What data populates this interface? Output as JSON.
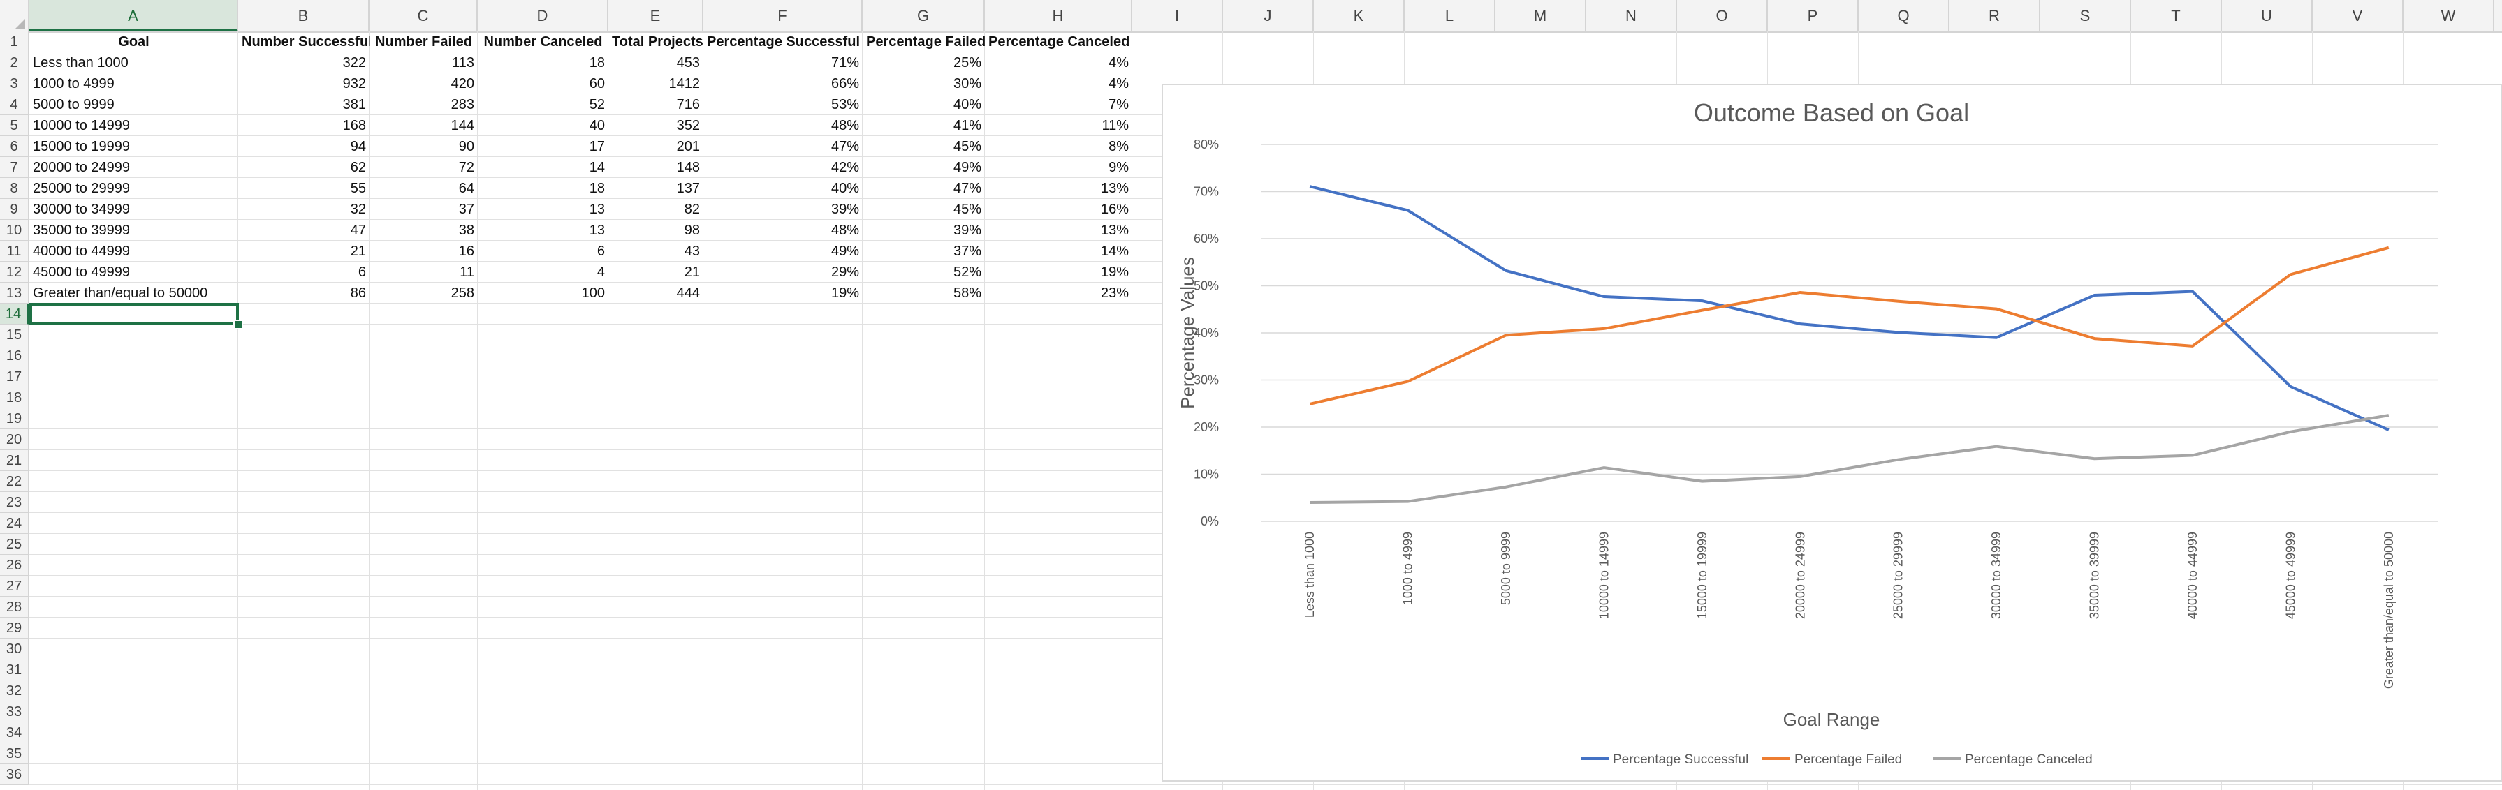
{
  "sheet": {
    "columns": [
      "A",
      "B",
      "C",
      "D",
      "E",
      "F",
      "G",
      "H",
      "I",
      "J",
      "K",
      "L",
      "M",
      "N",
      "O",
      "P",
      "Q",
      "R",
      "S",
      "T",
      "U",
      "V",
      "W"
    ],
    "active_column": "A",
    "rows": [
      "1",
      "2",
      "3",
      "4",
      "5",
      "6",
      "7",
      "8",
      "9",
      "10",
      "11",
      "12",
      "13",
      "14",
      "15",
      "16",
      "17",
      "18",
      "19",
      "20",
      "21",
      "22",
      "23",
      "24",
      "25",
      "26",
      "27",
      "28",
      "29",
      "30",
      "31",
      "32",
      "33",
      "34",
      "35",
      "36"
    ],
    "active_row": "14",
    "headers": [
      "Goal",
      "Number Successful",
      "Number Failed",
      "Number Canceled",
      "Total Projects",
      "Percentage Successful",
      "Percentage Failed",
      "Percentage Canceled"
    ],
    "data": [
      [
        "Less than 1000",
        "322",
        "113",
        "18",
        "453",
        "71%",
        "25%",
        "4%"
      ],
      [
        "1000 to 4999",
        "932",
        "420",
        "60",
        "1412",
        "66%",
        "30%",
        "4%"
      ],
      [
        "5000 to 9999",
        "381",
        "283",
        "52",
        "716",
        "53%",
        "40%",
        "7%"
      ],
      [
        "10000 to 14999",
        "168",
        "144",
        "40",
        "352",
        "48%",
        "41%",
        "11%"
      ],
      [
        "15000 to 19999",
        "94",
        "90",
        "17",
        "201",
        "47%",
        "45%",
        "8%"
      ],
      [
        "20000 to 24999",
        "62",
        "72",
        "14",
        "148",
        "42%",
        "49%",
        "9%"
      ],
      [
        "25000 to 29999",
        "55",
        "64",
        "18",
        "137",
        "40%",
        "47%",
        "13%"
      ],
      [
        "30000 to 34999",
        "32",
        "37",
        "13",
        "82",
        "39%",
        "45%",
        "16%"
      ],
      [
        "35000 to 39999",
        "47",
        "38",
        "13",
        "98",
        "48%",
        "39%",
        "13%"
      ],
      [
        "40000 to 44999",
        "21",
        "16",
        "6",
        "43",
        "49%",
        "37%",
        "14%"
      ],
      [
        "45000 to 49999",
        "6",
        "11",
        "4",
        "21",
        "29%",
        "52%",
        "19%"
      ],
      [
        "Greater than/equal to 50000",
        "86",
        "258",
        "100",
        "444",
        "19%",
        "58%",
        "23%"
      ]
    ]
  },
  "chart_data": {
    "type": "line",
    "title": "Outcome Based on Goal",
    "xlabel": "Goal Range",
    "ylabel": "Percentage Values",
    "ylim": [
      0,
      80
    ],
    "yticks": [
      "0%",
      "10%",
      "20%",
      "30%",
      "40%",
      "50%",
      "60%",
      "70%",
      "80%"
    ],
    "categories": [
      "Less than 1000",
      "1000 to 4999",
      "5000 to 9999",
      "10000 to 14999",
      "15000 to 19999",
      "20000 to 24999",
      "25000 to 29999",
      "30000 to 34999",
      "35000 to 39999",
      "40000 to 44999",
      "45000 to 49999",
      "Greater than/equal to 50000"
    ],
    "series": [
      {
        "name": "Percentage Successful",
        "color": "#4472C4",
        "values": [
          71.1,
          66.0,
          53.2,
          47.7,
          46.8,
          41.9,
          40.1,
          39.0,
          48.0,
          48.8,
          28.6,
          19.4
        ]
      },
      {
        "name": "Percentage Failed",
        "color": "#ED7D31",
        "values": [
          24.9,
          29.7,
          39.5,
          40.9,
          44.8,
          48.6,
          46.7,
          45.1,
          38.8,
          37.2,
          52.4,
          58.1
        ]
      },
      {
        "name": "Percentage Canceled",
        "color": "#A5A5A5",
        "values": [
          4.0,
          4.2,
          7.3,
          11.4,
          8.5,
          9.5,
          13.1,
          15.9,
          13.3,
          14.0,
          19.0,
          22.5
        ]
      }
    ],
    "grid": true,
    "legend": "bottom"
  }
}
